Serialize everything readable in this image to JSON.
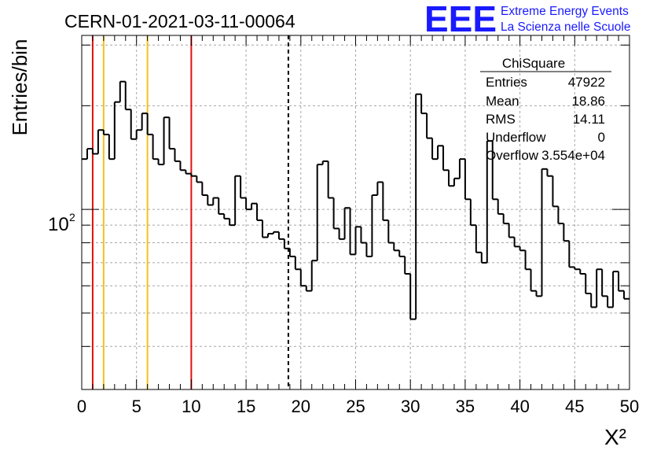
{
  "header": {
    "run_title": "CERN-01-2021-03-11-00064",
    "logo_letters": "EEE",
    "logo_line1": "Extreme Energy Events",
    "logo_line2": "La Scienza nelle Scuole"
  },
  "colors": {
    "logo": "#1a1aff",
    "histogram": "#000000",
    "red_line": "#dd1111",
    "yellow_line": "#f2c21a",
    "grid": "#a6a6a6"
  },
  "stats_box": {
    "title": "ChiSquare",
    "rows": [
      {
        "label": "Entries",
        "value": "47922"
      },
      {
        "label": "Mean",
        "value": "18.86"
      },
      {
        "label": "RMS",
        "value": "14.11"
      },
      {
        "label": "Underflow",
        "value": "0"
      },
      {
        "label": "Overflow",
        "value": "3.554e+04"
      }
    ]
  },
  "chart_data": {
    "type": "histogram",
    "title": "CERN-01-2021-03-11-00064",
    "xlabel": "X²",
    "ylabel": "Entries/bin",
    "xlim": [
      0,
      50
    ],
    "ylim": [
      30,
      320
    ],
    "y_scale": "log",
    "grid": true,
    "bin_width": 0.5,
    "x_ticks": [
      "0",
      "5",
      "10",
      "15",
      "20",
      "25",
      "30",
      "35",
      "40",
      "45",
      "50"
    ],
    "y_tick_label": "10",
    "y_tick_exp": "2",
    "y_tick_value": 100,
    "bin_starts": [
      0,
      0.5,
      1,
      1.5,
      2,
      2.5,
      3,
      3.5,
      4,
      4.5,
      5,
      5.5,
      6,
      6.5,
      7,
      7.5,
      8,
      8.5,
      9,
      9.5,
      10,
      10.5,
      11,
      11.5,
      12,
      12.5,
      13,
      13.5,
      14,
      14.5,
      15,
      15.5,
      16,
      16.5,
      17,
      17.5,
      18,
      18.5,
      19,
      19.5,
      20,
      20.5,
      21,
      21.5,
      22,
      22.5,
      23,
      23.5,
      24,
      24.5,
      25,
      25.5,
      26,
      26.5,
      27,
      27.5,
      28,
      28.5,
      29,
      29.5,
      30,
      30.5,
      31,
      31.5,
      32,
      32.5,
      33,
      33.5,
      34,
      34.5,
      35,
      35.5,
      36,
      36.5,
      37,
      37.5,
      38,
      38.5,
      39,
      39.5,
      40,
      40.5,
      41,
      41.5,
      42,
      42.5,
      43,
      43.5,
      44,
      44.5,
      45,
      45.5,
      46,
      46.5,
      47,
      47.5,
      48,
      48.5,
      49,
      49.5
    ],
    "values": [
      140,
      150,
      145,
      170,
      165,
      140,
      205,
      235,
      195,
      160,
      170,
      190,
      165,
      140,
      135,
      185,
      150,
      138,
      130,
      127,
      125,
      120,
      110,
      103,
      108,
      97,
      94,
      90,
      125,
      108,
      100,
      104,
      93,
      83,
      85,
      86,
      82,
      77,
      73,
      67,
      60,
      58,
      71,
      135,
      138,
      108,
      88,
      82,
      101,
      74,
      89,
      80,
      73,
      110,
      120,
      93,
      80,
      76,
      73,
      65,
      48,
      216,
      190,
      161,
      140,
      153,
      130,
      117,
      123,
      140,
      107,
      90,
      75,
      70,
      158,
      107,
      97,
      91,
      83,
      78,
      76,
      67,
      58,
      56,
      131,
      125,
      102,
      91,
      81,
      68,
      67,
      65,
      57,
      52,
      67,
      56,
      52,
      66,
      58,
      55
    ]
  },
  "markers": {
    "red_lines_x": [
      1,
      10
    ],
    "yellow_lines_x": [
      2,
      6
    ],
    "dashed_line_x": 18.86
  }
}
